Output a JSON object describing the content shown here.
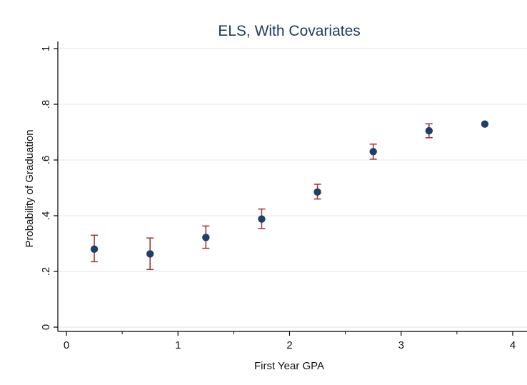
{
  "colors": {
    "point": "#1f3f66",
    "errorbar": "#a33b3b",
    "grid": "#e6e6e6",
    "axis": "#000000",
    "title": "#1e3a5f"
  },
  "chart_data": {
    "type": "scatter",
    "title": "ELS, With Covariates",
    "xlabel": "First Year GPA",
    "ylabel": "Probability of Graduation",
    "xlim": [
      0,
      4
    ],
    "ylim": [
      0,
      1
    ],
    "x_ticks": [
      0,
      1,
      2,
      3,
      4
    ],
    "x_tick_labels": [
      "0",
      "1",
      "2",
      "3",
      "4"
    ],
    "x_minor_ticks": [
      0.5,
      1.5,
      2.5,
      3.5
    ],
    "y_ticks": [
      0,
      0.2,
      0.4,
      0.6,
      0.8,
      1
    ],
    "y_tick_labels": [
      "0",
      ".2",
      ".4",
      ".6",
      ".8",
      "1"
    ],
    "grid": true,
    "points": [
      {
        "x": 0.25,
        "y": 0.28,
        "lo": 0.235,
        "hi": 0.33
      },
      {
        "x": 0.75,
        "y": 0.263,
        "lo": 0.207,
        "hi": 0.32
      },
      {
        "x": 1.25,
        "y": 0.322,
        "lo": 0.283,
        "hi": 0.363
      },
      {
        "x": 1.75,
        "y": 0.388,
        "lo": 0.354,
        "hi": 0.424
      },
      {
        "x": 2.25,
        "y": 0.485,
        "lo": 0.46,
        "hi": 0.513
      },
      {
        "x": 2.75,
        "y": 0.63,
        "lo": 0.603,
        "hi": 0.657
      },
      {
        "x": 3.25,
        "y": 0.705,
        "lo": 0.68,
        "hi": 0.73
      },
      {
        "x": 3.75,
        "y": 0.729,
        "lo": null,
        "hi": null
      }
    ]
  }
}
